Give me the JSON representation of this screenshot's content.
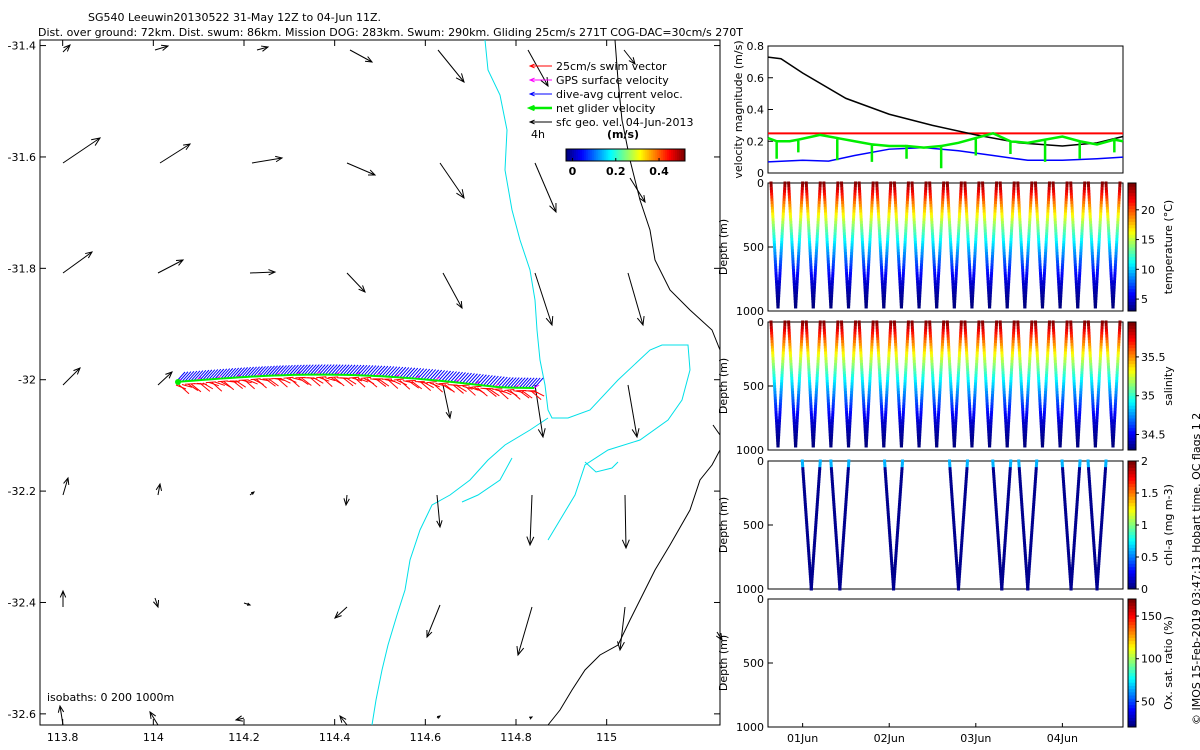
{
  "title": {
    "line1": "SG540 Leeuwin20130522 31-May 12Z to 04-Jun 11Z.",
    "line2": "Dist. over ground: 72km. Dist. swum: 86km. Mission DOG: 283km. Swum: 290km. Gliding 25cm/s 271T COG-DAC=30cm/s 270T"
  },
  "side_label": "© IMOS 15-Feb-2019 03:47:13 Hobart time. QC flags 1  2",
  "chart_data": [
    {
      "type": "map",
      "name": "glider-track-map",
      "xlim": [
        113.75,
        115.25
      ],
      "ylim": [
        -32.62,
        -31.39
      ],
      "x_ticks": [
        "113.8",
        "114",
        "114.2",
        "114.4",
        "114.6",
        "114.8",
        "115"
      ],
      "x_tick_values": [
        113.8,
        114.0,
        114.2,
        114.4,
        114.6,
        114.8,
        115.0
      ],
      "y_ticks": [
        "-31.4",
        "-31.6",
        "-31.8",
        "-32",
        "-32.2",
        "-32.4",
        "-32.6"
      ],
      "y_tick_values": [
        -31.4,
        -31.6,
        -31.8,
        -32.0,
        -32.2,
        -32.4,
        -32.6
      ],
      "legend": [
        {
          "label": "25cm/s swim vector",
          "color": "#ff0000"
        },
        {
          "label": "GPS surface velocity",
          "color": "#ff00ff"
        },
        {
          "label": "dive-avg current veloc.",
          "color": "#0000ff"
        },
        {
          "label": "net glider velocity",
          "color": "#00ee00"
        },
        {
          "label": "sfc geo. vel. 04-Jun-2013",
          "color": "#000000"
        }
      ],
      "scale_label": "4h",
      "colorbar": {
        "title": "(m/s)",
        "ticks": [
          "0",
          "0.2",
          "0.4"
        ],
        "tick_values": [
          0,
          0.2,
          0.4
        ],
        "range": [
          -0.03,
          0.52
        ]
      },
      "isobaths_label": "isobaths: 0   200  1000m",
      "track": {
        "lon_start": 114.05,
        "lon_end": 114.84,
        "lat": -32.0
      }
    },
    {
      "type": "line",
      "name": "velocity-magnitude",
      "ylabel": "velocity magnitude (m/s)",
      "ylim": [
        0,
        0.8
      ],
      "y_ticks": [
        "0",
        "0.2",
        "0.4",
        "0.6",
        "0.8"
      ],
      "y_tick_values": [
        0,
        0.2,
        0.4,
        0.6,
        0.8
      ],
      "x_range_days": [
        0.6,
        4.7
      ],
      "series": [
        {
          "name": "red",
          "color": "#ff0000",
          "x": [
            0.6,
            4.7
          ],
          "y": [
            0.25,
            0.25
          ]
        },
        {
          "name": "black",
          "color": "#000000",
          "x": [
            0.6,
            0.75,
            1.0,
            1.5,
            2.0,
            2.5,
            3.0,
            3.5,
            4.0,
            4.4,
            4.7
          ],
          "y": [
            0.73,
            0.72,
            0.63,
            0.47,
            0.37,
            0.3,
            0.24,
            0.19,
            0.17,
            0.19,
            0.23
          ]
        },
        {
          "name": "blue",
          "color": "#0000ff",
          "x": [
            0.6,
            1.0,
            1.3,
            1.6,
            2.0,
            2.4,
            2.8,
            3.2,
            3.6,
            4.0,
            4.4,
            4.7
          ],
          "y": [
            0.07,
            0.08,
            0.075,
            0.11,
            0.15,
            0.16,
            0.14,
            0.11,
            0.08,
            0.08,
            0.09,
            0.1
          ]
        },
        {
          "name": "green",
          "color": "#00ee00",
          "x": [
            0.6,
            0.7,
            0.85,
            0.95,
            1.2,
            1.4,
            1.6,
            1.8,
            2.0,
            2.2,
            2.4,
            2.6,
            2.8,
            3.0,
            3.2,
            3.4,
            3.6,
            3.8,
            4.0,
            4.2,
            4.4,
            4.6,
            4.7
          ],
          "y": [
            0.22,
            0.2,
            0.2,
            0.21,
            0.24,
            0.22,
            0.2,
            0.18,
            0.17,
            0.17,
            0.16,
            0.17,
            0.19,
            0.22,
            0.25,
            0.2,
            0.19,
            0.21,
            0.23,
            0.2,
            0.18,
            0.21,
            0.2
          ]
        }
      ]
    },
    {
      "type": "scatter",
      "name": "temperature-section",
      "ylabel": "Depth (m)",
      "y_ticks": [
        "0",
        "500",
        "1000"
      ],
      "y_tick_values": [
        0,
        500,
        1000
      ],
      "ylim": [
        0,
        1000
      ],
      "colorbar": {
        "label": "temperature (°C)",
        "ticks": [
          "5",
          "10",
          "15",
          "20"
        ],
        "tick_values": [
          5,
          10,
          15,
          20
        ],
        "range": [
          3,
          24.5
        ]
      },
      "dive_count": 20,
      "max_depth": 980
    },
    {
      "type": "scatter",
      "name": "salinity-section",
      "ylabel": "Depth (m)",
      "y_ticks": [
        "0",
        "500",
        "1000"
      ],
      "y_tick_values": [
        0,
        500,
        1000
      ],
      "ylim": [
        0,
        1000
      ],
      "colorbar": {
        "label": "salinity",
        "ticks": [
          "34.5",
          "35",
          "35.5"
        ],
        "tick_values": [
          34.5,
          35,
          35.5
        ],
        "range": [
          34.3,
          35.95
        ]
      },
      "dive_count": 20,
      "max_depth": 980
    },
    {
      "type": "scatter",
      "name": "chlorophyll-section",
      "ylabel": "Depth (m)",
      "y_ticks": [
        "0",
        "500",
        "1000"
      ],
      "y_tick_values": [
        0,
        500,
        1000
      ],
      "ylim": [
        0,
        1000
      ],
      "colorbar": {
        "label": "chl-a (mg m-3)",
        "ticks": [
          "0",
          "0.5",
          "1",
          "1.5",
          "2"
        ],
        "tick_values": [
          0,
          0.5,
          1,
          1.5,
          2
        ],
        "range": [
          0,
          2
        ]
      },
      "dive_x_days": [
        1.1,
        1.43,
        2.05,
        2.8,
        3.3,
        3.6,
        4.1,
        4.4
      ],
      "max_depth": 1000
    },
    {
      "type": "scatter",
      "name": "oxygen-section",
      "ylabel": "Depth (m)",
      "y_ticks": [
        "0",
        "500",
        "1000"
      ],
      "y_tick_values": [
        0,
        500,
        1000
      ],
      "ylim": [
        0,
        1000
      ],
      "colorbar": {
        "label": "Ox. sat. ratio (%)",
        "ticks": [
          "50",
          "100",
          "150"
        ],
        "tick_values": [
          50,
          100,
          150
        ],
        "range": [
          20,
          170
        ]
      },
      "x_ticks": [
        "01Jun",
        "02Jun",
        "03Jun",
        "04Jun"
      ],
      "x_tick_values": [
        1,
        2,
        3,
        4
      ]
    }
  ]
}
